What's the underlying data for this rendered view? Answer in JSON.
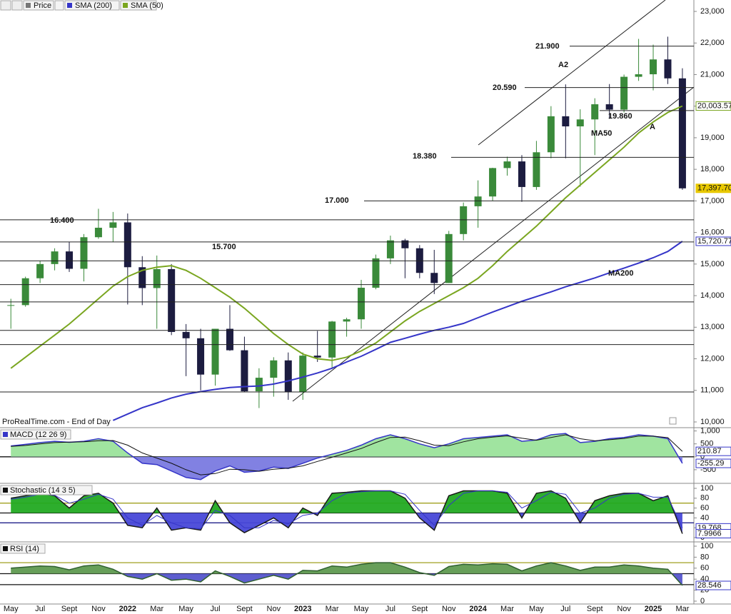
{
  "chart_data": [
    {
      "type": "candlestick",
      "name": "Price",
      "categories": [
        "May",
        null,
        "Jul",
        null,
        "Sept",
        null,
        "Nov",
        null,
        "2022",
        null,
        "Mar",
        null,
        "May",
        null,
        "Jul",
        null,
        "Sept",
        null,
        "Nov",
        null,
        "2023",
        null,
        "Mar",
        null,
        "May",
        null,
        "Jul",
        null,
        "Sept",
        null,
        "Nov",
        null,
        "2024",
        null,
        "Mar",
        null,
        "May",
        null,
        "Jul",
        null,
        "Sept",
        null,
        "Nov",
        null,
        "2025",
        null,
        "Mar"
      ],
      "open": [
        13700,
        13700,
        14550,
        15000,
        15400,
        14850,
        15850,
        16150,
        16320,
        14900,
        14240,
        14840,
        12850,
        12650,
        11500,
        12950,
        12270,
        10970,
        11400,
        11950,
        10940,
        12100,
        12040,
        13180,
        13250,
        14250,
        15180,
        15750,
        15500,
        14720,
        14400,
        15950,
        16830,
        17140,
        18040,
        18250,
        17440,
        18540,
        19680,
        19360,
        19580,
        20060,
        19890,
        20930,
        21010,
        21480,
        20880
      ],
      "high": [
        13900,
        14600,
        15100,
        15500,
        15700,
        15950,
        16750,
        16650,
        16600,
        15250,
        15270,
        15000,
        13100,
        12950,
        12950,
        13700,
        12700,
        11700,
        12050,
        12200,
        12200,
        12880,
        13200,
        13300,
        14500,
        15300,
        15900,
        15800,
        15600,
        15450,
        16050,
        16950,
        17650,
        18050,
        18400,
        18450,
        18900,
        20000,
        20690,
        19900,
        20250,
        20700,
        21000,
        22130,
        21950,
        22200,
        21200
      ],
      "low": [
        12950,
        13650,
        14400,
        14800,
        14750,
        14450,
        15800,
        15700,
        13720,
        13700,
        12950,
        12750,
        11450,
        11000,
        11150,
        12250,
        10950,
        10440,
        10800,
        10700,
        10700,
        11900,
        11700,
        12700,
        12950,
        14200,
        15000,
        14550,
        14550,
        14050,
        14400,
        15750,
        16150,
        17000,
        17800,
        16970,
        17350,
        18350,
        18350,
        17450,
        18450,
        19600,
        19800,
        20800,
        20500,
        20700,
        17350
      ],
      "close": [
        13700,
        14550,
        15000,
        15400,
        14850,
        15850,
        16150,
        16320,
        14900,
        14240,
        14840,
        12850,
        12650,
        11500,
        12950,
        12270,
        10970,
        11400,
        11950,
        10940,
        12100,
        12040,
        13180,
        13250,
        14250,
        15180,
        15750,
        15500,
        14720,
        14400,
        15950,
        16830,
        17140,
        18040,
        18250,
        17440,
        18540,
        19680,
        19360,
        19580,
        20060,
        19890,
        20930,
        21010,
        21480,
        20880,
        17397.7
      ],
      "up_color": "#3a8a3a",
      "down_color": "#1c1c40",
      "series": [
        {
          "name": "SMA (200)",
          "color": "#3535c8",
          "values": [
            null,
            null,
            null,
            null,
            null,
            null,
            null,
            10050,
            10250,
            10450,
            10600,
            10760,
            10880,
            10960,
            11030,
            11090,
            11120,
            11140,
            11200,
            11300,
            11420,
            11550,
            11700,
            11900,
            12080,
            12300,
            12520,
            12650,
            12780,
            12900,
            13000,
            13120,
            13300,
            13480,
            13650,
            13820,
            13970,
            14120,
            14280,
            14420,
            14560,
            14720,
            14870,
            15030,
            15200,
            15400,
            15720.77
          ]
        },
        {
          "name": "SMA (50)",
          "color": "#7aa620",
          "values": [
            11700,
            12050,
            12400,
            12750,
            13100,
            13500,
            13900,
            14300,
            14600,
            14800,
            14900,
            14950,
            14800,
            14550,
            14250,
            13950,
            13600,
            13200,
            12800,
            12450,
            12150,
            12000,
            11950,
            12050,
            12250,
            12500,
            12850,
            13200,
            13500,
            13750,
            14000,
            14250,
            14550,
            14950,
            15400,
            15800,
            16200,
            16650,
            17100,
            17500,
            17900,
            18300,
            18700,
            19150,
            19500,
            19800,
            20003.57
          ]
        }
      ],
      "ylim": [
        10000,
        23000
      ],
      "yticks": [
        {
          "value": 10000,
          "label": "10,000"
        },
        {
          "value": 11000,
          "label": "11,000"
        },
        {
          "value": 12000,
          "label": "12,000"
        },
        {
          "value": 13000,
          "label": "13,000"
        },
        {
          "value": 14000,
          "label": "14,000"
        },
        {
          "value": 15000,
          "label": "15,000"
        },
        {
          "value": 16000,
          "label": "16,000"
        },
        {
          "value": 17000,
          "label": "17,000"
        },
        {
          "value": 18000,
          "label": "18,000"
        },
        {
          "value": 19000,
          "label": "19,000"
        },
        {
          "value": 20000,
          "label": "20,000"
        },
        {
          "value": 21000,
          "label": "21,000"
        },
        {
          "value": 22000,
          "label": "22,000"
        },
        {
          "value": 23000,
          "label": "23,000"
        }
      ],
      "levels": [
        {
          "value": 21900,
          "label": "21.900"
        },
        {
          "value": 20590,
          "label": "20.590"
        },
        {
          "value": 19860,
          "label": "19.860"
        },
        {
          "value": 18380,
          "label": "18.380"
        },
        {
          "value": 17000,
          "label": "17.000"
        },
        {
          "value": 16400,
          "label": "16.400"
        },
        {
          "value": 15700,
          "label": "15.700"
        },
        15100,
        14350,
        13800,
        12900,
        12450,
        10950
      ],
      "annotations": [
        "A2",
        "A",
        "MA50",
        "MA200"
      ],
      "annotation_colors": [
        "#111111",
        "#111111",
        "#e03030",
        "#2020b0"
      ],
      "markers": [
        {
          "value": 20003.57,
          "label": "20,003.57"
        },
        {
          "value": 17397.7,
          "label": "17,397.70"
        },
        {
          "value": 15720.77,
          "label": "15,720.77"
        }
      ],
      "marker_colors": [
        "#7aa620",
        "#e8c800",
        "#3535c8"
      ],
      "source": "ProRealTime.com - End of Day"
    },
    {
      "type": "area",
      "title": "MACD (12 26 9)",
      "title_color": "#3535c8",
      "series": [
        {
          "color": "#3535c8",
          "fill": [
            "#9be39b",
            "#7a7ae0"
          ],
          "values": [
            420,
            480,
            550,
            600,
            560,
            600,
            700,
            600,
            150,
            -250,
            -300,
            -550,
            -800,
            -880,
            -550,
            -350,
            -600,
            -550,
            -400,
            -450,
            -250,
            -50,
            100,
            250,
            450,
            700,
            850,
            700,
            500,
            350,
            500,
            700,
            750,
            800,
            850,
            600,
            650,
            850,
            900,
            550,
            600,
            700,
            750,
            850,
            800,
            700,
            -255.29
          ]
        },
        {
          "color": "#111111",
          "values": [
            400,
            440,
            500,
            550,
            570,
            580,
            620,
            630,
            450,
            150,
            -50,
            -250,
            -500,
            -700,
            -650,
            -480,
            -500,
            -560,
            -480,
            -440,
            -350,
            -180,
            -20,
            150,
            320,
            550,
            750,
            760,
            620,
            450,
            430,
            580,
            700,
            760,
            810,
            720,
            640,
            750,
            850,
            700,
            620,
            660,
            710,
            800,
            800,
            740,
            210.87
          ]
        }
      ],
      "fill_base": 0,
      "levels": [
        0
      ],
      "level_colors": [
        "#111111"
      ],
      "ylim": [
        -1000,
        1100
      ],
      "yticks": [
        {
          "value": 1000,
          "label": "1,000"
        },
        500,
        0,
        -500
      ],
      "markers": [
        210.87,
        -255.29
      ]
    },
    {
      "type": "area",
      "title": "Stochastic (14 3 5)",
      "title_color": "#111111",
      "series": [
        {
          "color": "#1a1a1a",
          "fill": [
            "#22aa22",
            "#4848d8"
          ],
          "values": [
            80,
            85,
            90,
            85,
            60,
            85,
            90,
            70,
            25,
            20,
            60,
            15,
            20,
            15,
            75,
            30,
            10,
            25,
            40,
            20,
            60,
            45,
            90,
            92,
            95,
            95,
            95,
            80,
            40,
            15,
            85,
            95,
            95,
            95,
            90,
            40,
            90,
            95,
            80,
            30,
            75,
            85,
            90,
            90,
            75,
            85,
            7.9966
          ]
        },
        {
          "color": "#3535c8",
          "values": [
            78,
            82,
            88,
            86,
            70,
            78,
            88,
            78,
            40,
            25,
            45,
            30,
            20,
            18,
            55,
            45,
            20,
            20,
            35,
            28,
            45,
            50,
            75,
            90,
            93,
            95,
            95,
            88,
            55,
            25,
            65,
            90,
            95,
            95,
            92,
            60,
            75,
            92,
            88,
            50,
            60,
            80,
            88,
            90,
            82,
            82,
            19.768
          ]
        }
      ],
      "fill_base": 50,
      "levels": [
        70,
        50,
        30
      ],
      "level_colors": [
        "#a0a020",
        "#111111",
        "#20208a"
      ],
      "ylim": [
        0,
        100
      ],
      "yticks": [
        100,
        80,
        60,
        40,
        20,
        0
      ],
      "markers": [
        19.768,
        7.9966
      ]
    },
    {
      "type": "area",
      "title": "RSI (14)",
      "title_color": "#111111",
      "series": [
        {
          "color": "#2f5f2f",
          "fill": [
            "#5f9a50",
            "#5555cc"
          ],
          "values": [
            60,
            62,
            64,
            63,
            57,
            64,
            66,
            58,
            45,
            40,
            50,
            38,
            40,
            35,
            55,
            45,
            33,
            40,
            47,
            40,
            56,
            55,
            64,
            62,
            67,
            70,
            70,
            62,
            52,
            47,
            63,
            67,
            66,
            68,
            67,
            55,
            64,
            70,
            64,
            56,
            62,
            62,
            66,
            64,
            60,
            58,
            28.546
          ]
        }
      ],
      "fill_base": 50,
      "levels": [
        70,
        50,
        30
      ],
      "level_colors": [
        "#a0a020",
        "#111111",
        "#111111"
      ],
      "ylim": [
        0,
        100
      ],
      "yticks": [
        100,
        80,
        60,
        40,
        20,
        0
      ],
      "markers": [
        28.546
      ]
    }
  ]
}
